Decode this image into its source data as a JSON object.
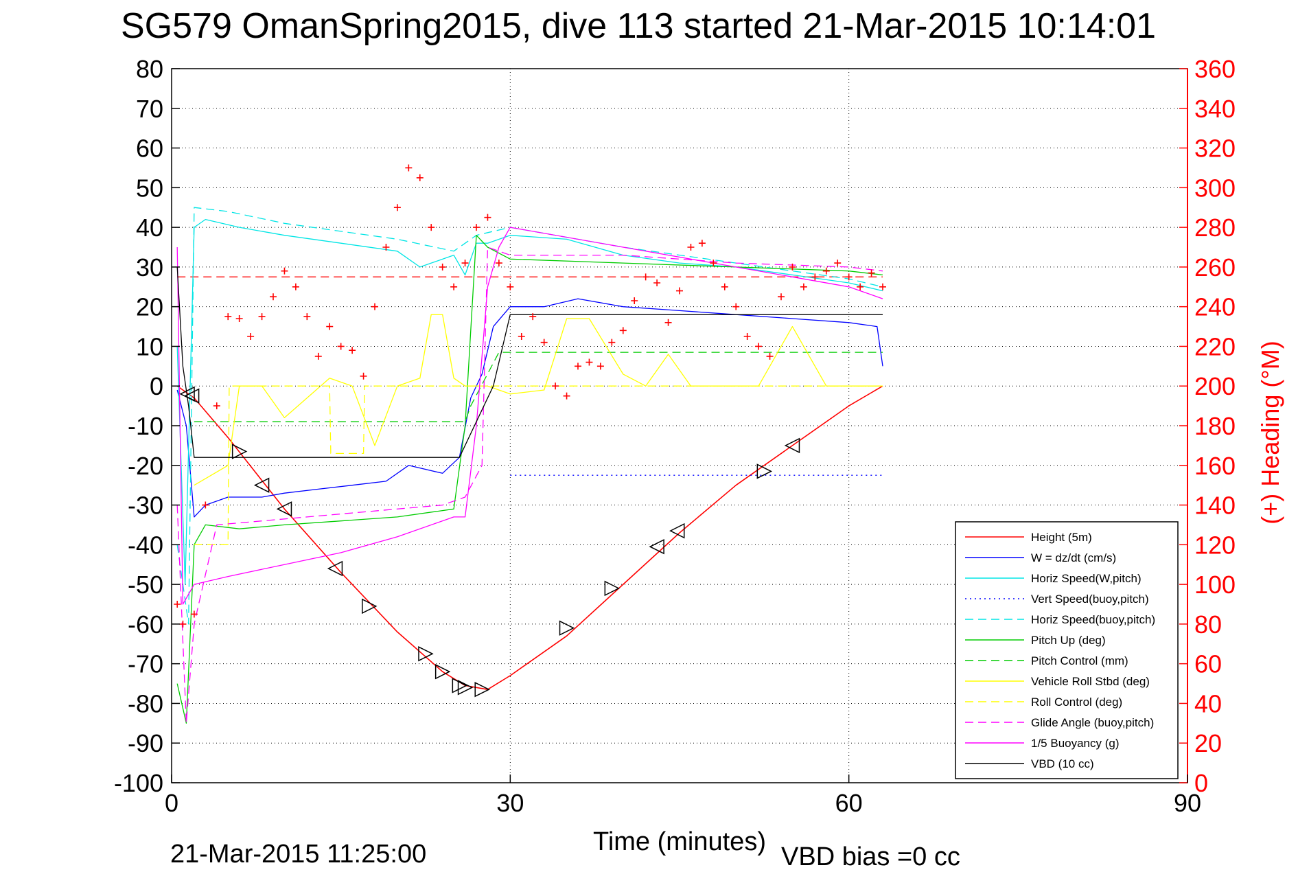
{
  "chart_data": {
    "type": "line",
    "title": "SG579 OmanSpring2015, dive 113 started 21-Mar-2015 10:14:01",
    "xlabel": "Time (minutes)",
    "ylabel_left": "",
    "ylabel_right": "(+) Heading (°M)",
    "xlim": [
      0,
      90
    ],
    "ylim_left": [
      -100,
      80
    ],
    "ylim_right": [
      0,
      360
    ],
    "xticks": [
      0,
      30,
      60,
      90
    ],
    "yticks_left": [
      80,
      70,
      60,
      50,
      40,
      30,
      20,
      10,
      0,
      -10,
      -20,
      -30,
      -40,
      -50,
      -60,
      -70,
      -80,
      -90,
      -100
    ],
    "yticks_right": [
      360,
      340,
      320,
      300,
      280,
      260,
      240,
      220,
      200,
      180,
      160,
      140,
      120,
      100,
      80,
      60,
      40,
      20,
      0
    ],
    "grid": true,
    "legend_position": "bottom-right",
    "end_time_label": "21-Mar-2015 11:25:00",
    "vbd_bias_label": "VBD bias =0 cc",
    "colors": {
      "right_axis": "#ff0000",
      "heading_marker": "#ff0000"
    },
    "series": [
      {
        "name": "Height (5m)",
        "color": "#ff0000",
        "dash": "solid",
        "x": [
          0.5,
          2,
          5,
          10,
          15,
          20,
          24,
          26,
          28,
          30,
          35,
          40,
          45,
          50,
          55,
          60,
          63
        ],
        "y": [
          0,
          -3,
          -13,
          -31,
          -47,
          -62,
          -72,
          -75.5,
          -76.5,
          -73,
          -63,
          -50,
          -37,
          -25,
          -15,
          -5,
          0
        ]
      },
      {
        "name": "W = dz/dt (cm/s)",
        "color": "#0000ff",
        "dash": "solid",
        "x": [
          0.5,
          1.3,
          2,
          3,
          5,
          8,
          10,
          13,
          16,
          19,
          21,
          24,
          25.5,
          26.5,
          27.5,
          28.5,
          30,
          33,
          36,
          40,
          45,
          50,
          55,
          60,
          62.5,
          63
        ],
        "y": [
          -1,
          -10,
          -33,
          -30,
          -28,
          -28,
          -27,
          -26,
          -25,
          -24,
          -20,
          -22,
          -18,
          -3,
          3,
          15,
          20,
          20,
          22,
          20,
          19,
          18,
          17,
          16,
          15,
          5
        ]
      },
      {
        "name": "Horiz Speed(W,pitch)",
        "color": "#00e5e5",
        "dash": "solid",
        "x": [
          0.5,
          1.2,
          2,
          3,
          6,
          10,
          15,
          20,
          22,
          25,
          26,
          27,
          28,
          30,
          35,
          40,
          45,
          50,
          55,
          60,
          63
        ],
        "y": [
          10,
          -50,
          40,
          42,
          40,
          38,
          36,
          34,
          30,
          33,
          28,
          36,
          36,
          38,
          37,
          33,
          31,
          30,
          28,
          26,
          24
        ]
      },
      {
        "name": "Vert Speed(buoy,pitch)",
        "color": "#0000ff",
        "dash": "dotted",
        "x": [
          30,
          63
        ],
        "y": [
          -22.5,
          -22.5
        ]
      },
      {
        "name": "Horiz Speed(buoy,pitch)",
        "color": "#00e5e5",
        "dash": "dashed",
        "x": [
          0.5,
          1.5,
          2,
          5,
          10,
          15,
          20,
          25,
          27,
          30,
          40,
          50,
          60,
          63
        ],
        "y": [
          -40,
          -60,
          45,
          44,
          41,
          39,
          37,
          34,
          38,
          40,
          35,
          31,
          27,
          25
        ]
      },
      {
        "name": "Pitch Up (deg)",
        "color": "#00cc00",
        "dash": "solid",
        "x": [
          0.5,
          1.3,
          2,
          3,
          6,
          10,
          15,
          20,
          25,
          26,
          27,
          28,
          30,
          40,
          50,
          60,
          63
        ],
        "y": [
          -75,
          -85,
          -40,
          -35,
          -36,
          -35,
          -34,
          -33,
          -31,
          -10,
          38,
          35,
          32,
          31,
          30,
          29,
          28
        ]
      },
      {
        "name": "Pitch Control (mm)",
        "color": "#00cc00",
        "dash": "dashed",
        "x": [
          2,
          26,
          26.5,
          29,
          30,
          63
        ],
        "y": [
          -9,
          -9,
          -5,
          8.5,
          8.5,
          8.5
        ]
      },
      {
        "name": "Vehicle Roll Stbd (deg)",
        "color": "#ffff00",
        "dash": "solid",
        "x": [
          2,
          5,
          6,
          8,
          10,
          14,
          16,
          18,
          20,
          22,
          23,
          24,
          25,
          26,
          28,
          30,
          33,
          35,
          37,
          40,
          42,
          44,
          46,
          48,
          50,
          52,
          55,
          58,
          60,
          63
        ],
        "y": [
          -25,
          -20,
          0,
          0,
          -8,
          2,
          0,
          -15,
          0,
          2,
          18,
          18,
          2,
          0,
          0,
          -2,
          -1,
          17,
          17,
          3,
          0,
          8,
          0,
          0,
          0,
          0,
          15,
          0,
          0,
          0
        ]
      },
      {
        "name": "Roll Control (deg)",
        "color": "#ffff00",
        "dash": "dashed",
        "x": [
          2,
          5,
          5.1,
          14,
          14.1,
          17,
          17.1,
          30,
          30.1,
          63
        ],
        "y": [
          -40,
          -40,
          0,
          0,
          -17,
          -17,
          0,
          0,
          0,
          0
        ]
      },
      {
        "name": "Glide Angle (buoy,pitch)",
        "color": "#ff00ff",
        "dash": "dashed",
        "x": [
          0.5,
          1.3,
          2,
          4,
          8,
          12,
          16,
          20,
          24,
          26,
          27.5,
          28,
          30,
          40,
          50,
          60,
          63
        ],
        "y": [
          -30,
          -85,
          -60,
          -35,
          -34,
          -33,
          -32,
          -31,
          -30,
          -28,
          -20,
          35,
          33,
          33,
          31,
          30,
          29
        ]
      },
      {
        "name": "1/5 Buoyancy (g)",
        "color": "#ff00ff",
        "dash": "solid",
        "x": [
          0.5,
          1,
          2,
          5,
          10,
          15,
          20,
          25,
          26,
          27,
          28,
          29,
          30,
          40,
          50,
          60,
          63
        ],
        "y": [
          35,
          -55,
          -50,
          -48,
          -45,
          -42,
          -38,
          -33,
          -33,
          -10,
          25,
          35,
          40,
          35,
          30,
          25,
          22
        ]
      },
      {
        "name": "VBD (10 cc)",
        "color": "#000000",
        "dash": "solid",
        "x": [
          0.5,
          1,
          1.5,
          2,
          10,
          20,
          25.5,
          28.5,
          30,
          63
        ],
        "y": [
          30,
          5,
          -5,
          -18,
          -18,
          -18,
          -18,
          0,
          18,
          18
        ]
      }
    ],
    "heading": {
      "name": "(+) Heading (°M)",
      "color": "#ff0000",
      "marker": "+",
      "reference": 255,
      "x": [
        0.5,
        1,
        2,
        3,
        4,
        5,
        6,
        7,
        8,
        9,
        10,
        11,
        12,
        13,
        14,
        15,
        16,
        17,
        18,
        19,
        20,
        21,
        22,
        23,
        24,
        25,
        26,
        27,
        28,
        29,
        30,
        31,
        32,
        33,
        34,
        35,
        36,
        37,
        38,
        39,
        40,
        41,
        42,
        43,
        44,
        45,
        46,
        47,
        48,
        49,
        50,
        51,
        52,
        53,
        54,
        55,
        56,
        57,
        58,
        59,
        60,
        61,
        62,
        63
      ],
      "y": [
        90,
        80,
        85,
        140,
        190,
        235,
        234,
        225,
        235,
        245,
        258,
        250,
        235,
        215,
        230,
        220,
        218,
        205,
        240,
        270,
        290,
        310,
        305,
        280,
        260,
        250,
        262,
        280,
        285,
        262,
        250,
        225,
        235,
        222,
        200,
        195,
        210,
        212,
        210,
        222,
        228,
        243,
        255,
        252,
        232,
        248,
        270,
        272,
        262,
        250,
        240,
        225,
        220,
        215,
        245,
        260,
        250,
        255,
        258,
        262,
        255,
        250,
        257,
        250
      ]
    },
    "markers": {
      "name": "Height markers",
      "color": "#000000",
      "shape": "triangle",
      "points": [
        {
          "x": 1.4,
          "y": -2,
          "dir": "left"
        },
        {
          "x": 1.8,
          "y": -2.5,
          "dir": "left"
        },
        {
          "x": 6,
          "y": -16.5,
          "dir": "right"
        },
        {
          "x": 8,
          "y": -25,
          "dir": "left"
        },
        {
          "x": 10,
          "y": -31,
          "dir": "left"
        },
        {
          "x": 14.5,
          "y": -46,
          "dir": "left"
        },
        {
          "x": 17.5,
          "y": -55.5,
          "dir": "right"
        },
        {
          "x": 22.5,
          "y": -67.5,
          "dir": "right"
        },
        {
          "x": 24,
          "y": -72,
          "dir": "right"
        },
        {
          "x": 25.5,
          "y": -75.5,
          "dir": "right"
        },
        {
          "x": 26,
          "y": -76,
          "dir": "right"
        },
        {
          "x": 27.5,
          "y": -76.5,
          "dir": "right"
        },
        {
          "x": 35,
          "y": -61,
          "dir": "right"
        },
        {
          "x": 39,
          "y": -51,
          "dir": "right"
        },
        {
          "x": 43,
          "y": -40.5,
          "dir": "left"
        },
        {
          "x": 44.8,
          "y": -36.5,
          "dir": "left"
        },
        {
          "x": 52.5,
          "y": -21.5,
          "dir": "right"
        },
        {
          "x": 55,
          "y": -15,
          "dir": "left"
        }
      ]
    }
  }
}
